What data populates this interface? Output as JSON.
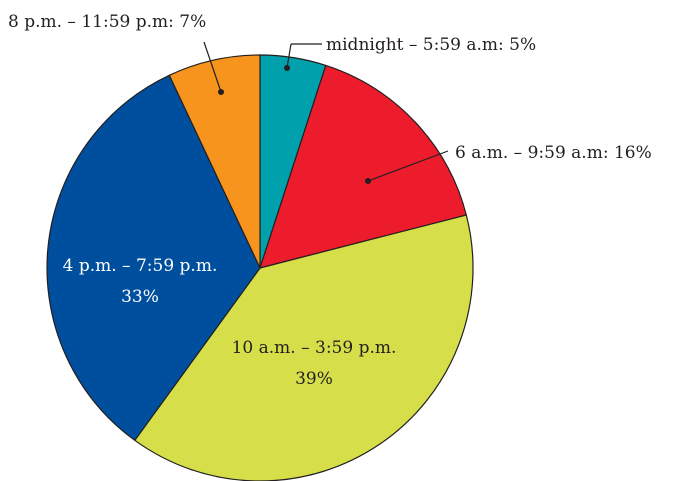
{
  "chart_data": {
    "type": "pie",
    "title": "",
    "slices": [
      {
        "label": "midnight – 5:59 a.m",
        "value": 5,
        "display": "midnight – 5:59 a.m: 5%",
        "color": "#00a0ad"
      },
      {
        "label": "6 a.m. – 9:59 a.m",
        "value": 16,
        "display": "6 a.m. –  9:59 a.m: 16%",
        "color": "#ec1c2d"
      },
      {
        "label": "10 a.m. – 3:59 p.m.",
        "value": 39,
        "display_line1": "10 a.m. – 3:59 p.m.",
        "display_line2": "39%",
        "color": "#d6df4a"
      },
      {
        "label": "4 p.m. – 7:59 p.m.",
        "value": 33,
        "display_line1": "4 p.m. – 7:59 p.m.",
        "display_line2": "33%",
        "color": "#004f9e"
      },
      {
        "label": "8 p.m. – 11:59 p.m",
        "value": 7,
        "display": "8 p.m. – 11:59 p.m: 7%",
        "color": "#f7941d"
      }
    ],
    "start_angle_deg": 0,
    "direction": "clockwise",
    "legend": "none"
  }
}
